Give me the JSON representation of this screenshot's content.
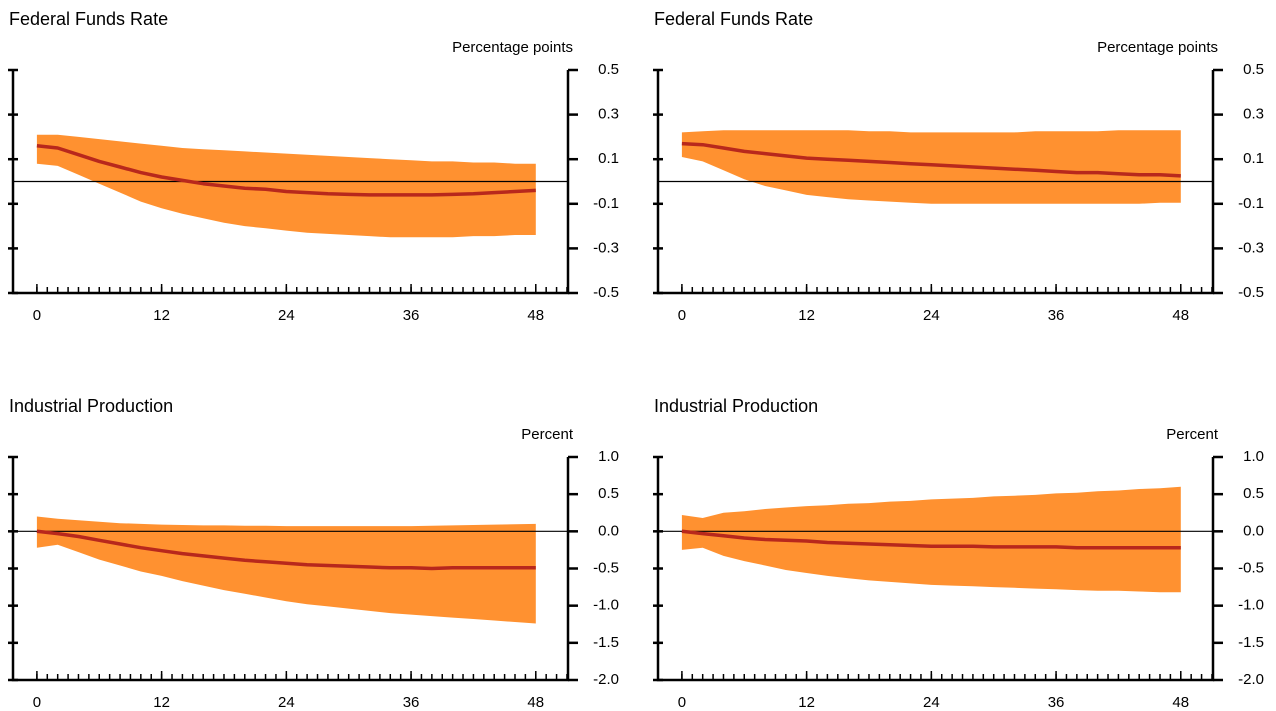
{
  "chart_data": [
    {
      "type": "line",
      "title": "Federal Funds Rate",
      "y_label": "Percentage points",
      "x": [
        0,
        2,
        4,
        6,
        8,
        10,
        12,
        14,
        16,
        18,
        20,
        22,
        24,
        26,
        28,
        30,
        32,
        34,
        36,
        38,
        40,
        42,
        44,
        46,
        48
      ],
      "values": [
        0.16,
        0.15,
        0.12,
        0.09,
        0.065,
        0.04,
        0.02,
        0.005,
        -0.01,
        -0.02,
        -0.03,
        -0.035,
        -0.045,
        -0.05,
        -0.055,
        -0.058,
        -0.06,
        -0.06,
        -0.06,
        -0.06,
        -0.058,
        -0.055,
        -0.05,
        -0.045,
        -0.04
      ],
      "upper": [
        0.21,
        0.21,
        0.2,
        0.19,
        0.18,
        0.17,
        0.16,
        0.15,
        0.145,
        0.14,
        0.135,
        0.13,
        0.125,
        0.12,
        0.115,
        0.11,
        0.105,
        0.1,
        0.095,
        0.09,
        0.09,
        0.085,
        0.085,
        0.08,
        0.08
      ],
      "lower": [
        0.08,
        0.07,
        0.03,
        -0.01,
        -0.05,
        -0.09,
        -0.12,
        -0.145,
        -0.165,
        -0.185,
        -0.2,
        -0.21,
        -0.22,
        -0.23,
        -0.235,
        -0.24,
        -0.245,
        -0.25,
        -0.25,
        -0.25,
        -0.25,
        -0.245,
        -0.245,
        -0.24,
        -0.24
      ],
      "color": "#b8281c",
      "band_color": "#ff9130",
      "reference_line": 0,
      "xlim": [
        -2.3,
        51.1
      ],
      "xticks": [
        0,
        12,
        24,
        36,
        48
      ],
      "minor_xtick_step": 1,
      "ylim": [
        -0.5,
        0.5
      ],
      "yticks": [
        -0.5,
        -0.3,
        -0.1,
        0.1,
        0.3,
        0.5
      ]
    },
    {
      "type": "line",
      "title": "Federal Funds Rate",
      "y_label": "Percentage points",
      "x": [
        0,
        2,
        4,
        6,
        8,
        10,
        12,
        14,
        16,
        18,
        20,
        22,
        24,
        26,
        28,
        30,
        32,
        34,
        36,
        38,
        40,
        42,
        44,
        46,
        48
      ],
      "values": [
        0.17,
        0.165,
        0.15,
        0.135,
        0.125,
        0.115,
        0.105,
        0.1,
        0.095,
        0.09,
        0.085,
        0.08,
        0.075,
        0.07,
        0.065,
        0.06,
        0.055,
        0.05,
        0.045,
        0.04,
        0.04,
        0.035,
        0.03,
        0.03,
        0.025
      ],
      "upper": [
        0.22,
        0.225,
        0.23,
        0.23,
        0.23,
        0.23,
        0.23,
        0.23,
        0.23,
        0.225,
        0.225,
        0.22,
        0.22,
        0.22,
        0.22,
        0.22,
        0.22,
        0.225,
        0.225,
        0.225,
        0.225,
        0.23,
        0.23,
        0.23,
        0.23
      ],
      "lower": [
        0.11,
        0.09,
        0.05,
        0.01,
        -0.02,
        -0.04,
        -0.06,
        -0.07,
        -0.08,
        -0.085,
        -0.09,
        -0.095,
        -0.1,
        -0.1,
        -0.1,
        -0.1,
        -0.1,
        -0.1,
        -0.1,
        -0.1,
        -0.1,
        -0.1,
        -0.1,
        -0.095,
        -0.095
      ],
      "color": "#b8281c",
      "band_color": "#ff9130",
      "reference_line": 0,
      "xlim": [
        -2.3,
        51.1
      ],
      "xticks": [
        0,
        12,
        24,
        36,
        48
      ],
      "minor_xtick_step": 1,
      "ylim": [
        -0.5,
        0.5
      ],
      "yticks": [
        -0.5,
        -0.3,
        -0.1,
        0.1,
        0.3,
        0.5
      ]
    },
    {
      "type": "line",
      "title": "Industrial Production",
      "y_label": "Percent",
      "x": [
        0,
        2,
        4,
        6,
        8,
        10,
        12,
        14,
        16,
        18,
        20,
        22,
        24,
        26,
        28,
        30,
        32,
        34,
        36,
        38,
        40,
        42,
        44,
        46,
        48
      ],
      "values": [
        0,
        -0.03,
        -0.07,
        -0.12,
        -0.17,
        -0.22,
        -0.26,
        -0.3,
        -0.33,
        -0.36,
        -0.39,
        -0.41,
        -0.43,
        -0.45,
        -0.46,
        -0.47,
        -0.48,
        -0.49,
        -0.49,
        -0.5,
        -0.49,
        -0.49,
        -0.49,
        -0.49,
        -0.49
      ],
      "upper": [
        0.2,
        0.17,
        0.15,
        0.13,
        0.11,
        0.1,
        0.09,
        0.085,
        0.08,
        0.08,
        0.075,
        0.075,
        0.07,
        0.07,
        0.07,
        0.07,
        0.07,
        0.07,
        0.07,
        0.075,
        0.08,
        0.085,
        0.09,
        0.095,
        0.1
      ],
      "lower": [
        -0.22,
        -0.18,
        -0.28,
        -0.38,
        -0.46,
        -0.54,
        -0.6,
        -0.67,
        -0.73,
        -0.79,
        -0.84,
        -0.89,
        -0.94,
        -0.98,
        -1.01,
        -1.04,
        -1.07,
        -1.1,
        -1.12,
        -1.14,
        -1.16,
        -1.18,
        -1.2,
        -1.22,
        -1.24
      ],
      "color": "#b8281c",
      "band_color": "#ff9130",
      "reference_line": 0,
      "xlim": [
        -2.3,
        51.1
      ],
      "xticks": [
        0,
        12,
        24,
        36,
        48
      ],
      "minor_xtick_step": 1,
      "ylim": [
        -2,
        1
      ],
      "yticks": [
        {
          "value": -2,
          "label": "-2.0"
        },
        {
          "value": -1.5,
          "label": "-1.5"
        },
        {
          "value": -1,
          "label": "-1.0"
        },
        {
          "value": -0.5,
          "label": "-0.5"
        },
        {
          "value": 0,
          "label": "0.0"
        },
        {
          "value": 0.5,
          "label": "0.5"
        },
        {
          "value": 1,
          "label": "1.0"
        }
      ]
    },
    {
      "type": "line",
      "title": "Industrial Production",
      "y_label": "Percent",
      "x": [
        0,
        2,
        4,
        6,
        8,
        10,
        12,
        14,
        16,
        18,
        20,
        22,
        24,
        26,
        28,
        30,
        32,
        34,
        36,
        38,
        40,
        42,
        44,
        46,
        48
      ],
      "values": [
        0,
        -0.03,
        -0.06,
        -0.09,
        -0.11,
        -0.12,
        -0.13,
        -0.15,
        -0.16,
        -0.17,
        -0.18,
        -0.19,
        -0.2,
        -0.2,
        -0.2,
        -0.21,
        -0.21,
        -0.21,
        -0.21,
        -0.22,
        -0.22,
        -0.22,
        -0.22,
        -0.22,
        -0.22
      ],
      "upper": [
        0.22,
        0.18,
        0.25,
        0.27,
        0.3,
        0.32,
        0.34,
        0.35,
        0.37,
        0.38,
        0.4,
        0.41,
        0.43,
        0.44,
        0.45,
        0.47,
        0.48,
        0.49,
        0.51,
        0.52,
        0.54,
        0.55,
        0.57,
        0.58,
        0.6
      ],
      "lower": [
        -0.25,
        -0.22,
        -0.33,
        -0.4,
        -0.46,
        -0.52,
        -0.56,
        -0.6,
        -0.63,
        -0.66,
        -0.68,
        -0.7,
        -0.72,
        -0.73,
        -0.74,
        -0.75,
        -0.76,
        -0.77,
        -0.78,
        -0.79,
        -0.8,
        -0.8,
        -0.81,
        -0.82,
        -0.82
      ],
      "color": "#b8281c",
      "band_color": "#ff9130",
      "reference_line": 0,
      "xlim": [
        -2.3,
        51.1
      ],
      "xticks": [
        0,
        12,
        24,
        36,
        48
      ],
      "minor_xtick_step": 1,
      "ylim": [
        -2,
        1
      ],
      "yticks": [
        {
          "value": -2,
          "label": "-2.0"
        },
        {
          "value": -1.5,
          "label": "-1.5"
        },
        {
          "value": -1,
          "label": "-1.0"
        },
        {
          "value": -0.5,
          "label": "-0.5"
        },
        {
          "value": 0,
          "label": "0.0"
        },
        {
          "value": 0.5,
          "label": "0.5"
        },
        {
          "value": 1,
          "label": "1.0"
        }
      ]
    }
  ]
}
